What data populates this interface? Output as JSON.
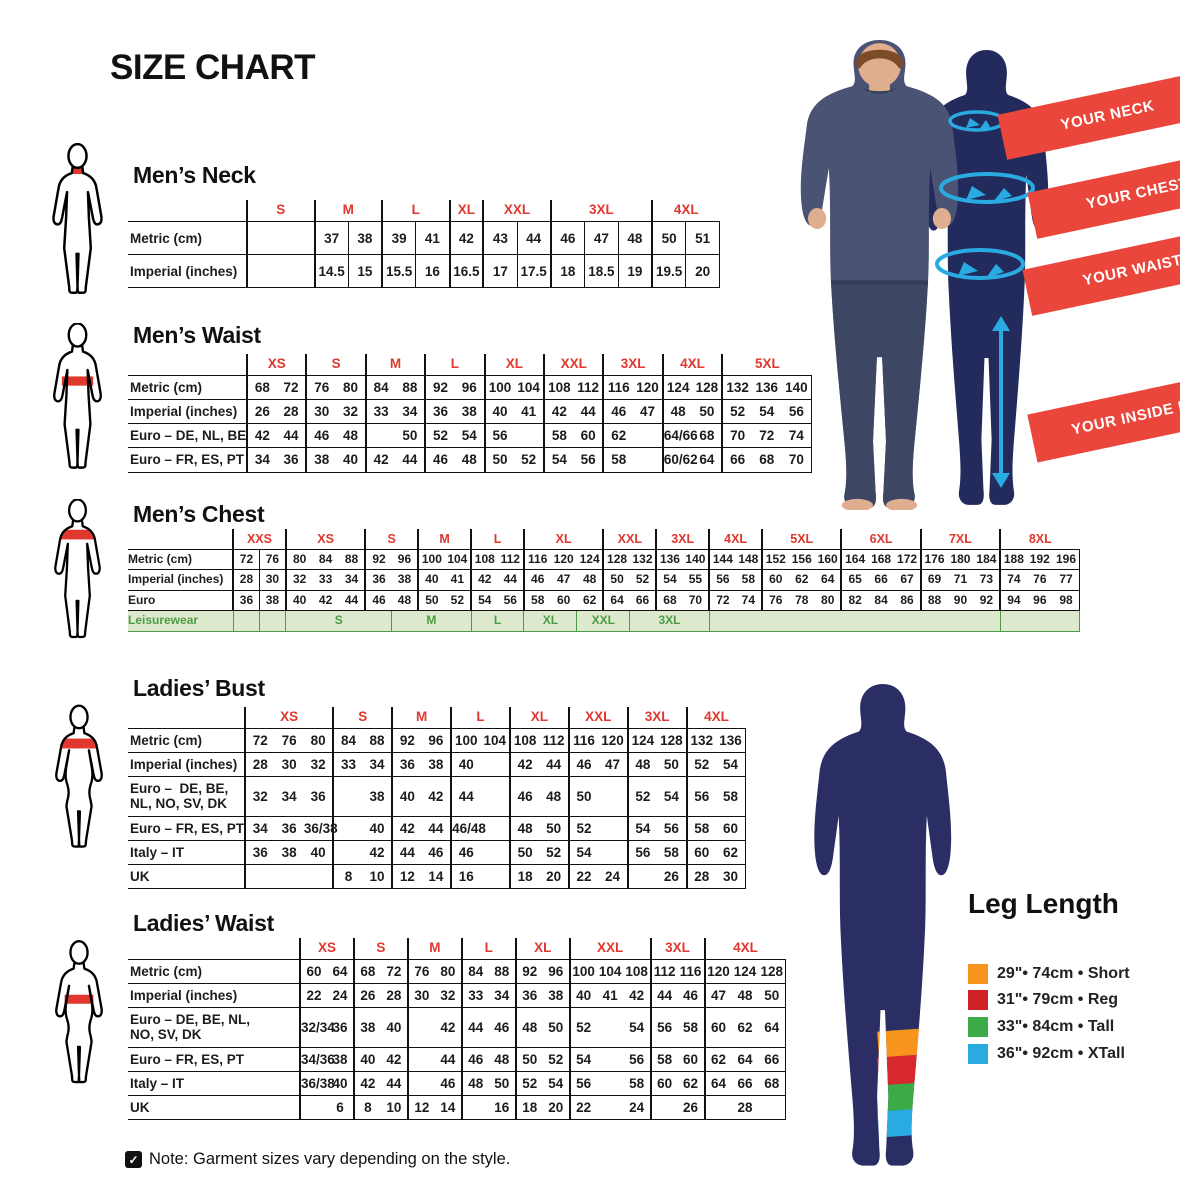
{
  "title": "SIZE CHART",
  "note": {
    "text": "Note: Garment sizes vary depending on the style."
  },
  "banners": {
    "neck": "YOUR NECK",
    "chest": "YOUR CHEST",
    "waist": "YOUR WAIST",
    "inside_leg": "YOUR INSIDE LEG"
  },
  "leg_length": {
    "title": "Leg Length",
    "items": [
      {
        "color": "#F7941E",
        "label": "29\"• 74cm • Short"
      },
      {
        "color": "#CE2127",
        "label": "31\"• 79cm • Reg"
      },
      {
        "color": "#3BAA47",
        "label": "33\"• 84cm • Tall"
      },
      {
        "color": "#29ABE2",
        "label": "36\"• 92cm • XTall"
      }
    ]
  },
  "colors": {
    "header_red": "#E0372E",
    "banner_red": "#EB463B",
    "silhouette_navy": "#232A5C",
    "leisure_green": "#4D9C45",
    "leisure_bg": "#DCE9CD",
    "cyan": "#29ABE2"
  },
  "tables": [
    {
      "id": "mens-neck",
      "title": "Men’s Neck",
      "cell_dividers": true,
      "groups": [
        {
          "label": "S",
          "cols": 2
        },
        {
          "label": "M",
          "cols": 2
        },
        {
          "label": "L",
          "cols": 2
        },
        {
          "label": "XL",
          "cols": 1
        },
        {
          "label": "XXL",
          "cols": 2
        },
        {
          "label": "3XL",
          "cols": 3
        },
        {
          "label": "4XL",
          "cols": 2
        }
      ],
      "rows": [
        {
          "label": "Metric (cm)",
          "cells": [
            [
              "",
              2
            ],
            "37",
            "38",
            "39",
            "41",
            "42",
            "43",
            "44",
            "46",
            "47",
            "48",
            "50",
            "51"
          ]
        },
        {
          "label": "Imperial (inches)",
          "cells": [
            [
              "",
              2
            ],
            "14.5",
            "15",
            "15.5",
            "16",
            "16.5",
            "17",
            "17.5",
            "18",
            "18.5",
            "19",
            "19.5",
            "20"
          ]
        }
      ]
    },
    {
      "id": "mens-waist",
      "title": "Men’s Waist",
      "cell_dividers": false,
      "groups": [
        {
          "label": "XS",
          "cols": 2
        },
        {
          "label": "S",
          "cols": 2
        },
        {
          "label": "M",
          "cols": 2
        },
        {
          "label": "L",
          "cols": 2
        },
        {
          "label": "XL",
          "cols": 2
        },
        {
          "label": "XXL",
          "cols": 2
        },
        {
          "label": "3XL",
          "cols": 2
        },
        {
          "label": "4XL",
          "cols": 2
        },
        {
          "label": "5XL",
          "cols": 3
        }
      ],
      "rows": [
        {
          "label": "Metric (cm)",
          "cells": [
            "68",
            "72",
            "76",
            "80",
            "84",
            "88",
            "92",
            "96",
            "100",
            "104",
            "108",
            "112",
            "116",
            "120",
            "124",
            "128",
            "132",
            "136",
            "140"
          ]
        },
        {
          "label": "Imperial (inches)",
          "cells": [
            "26",
            "28",
            "30",
            "32",
            "33",
            "34",
            "36",
            "38",
            "40",
            "41",
            "42",
            "44",
            "46",
            "47",
            "48",
            "50",
            "52",
            "54",
            "56"
          ]
        },
        {
          "label": "Euro – DE, NL, BE",
          "cells": [
            "42",
            "44",
            "46",
            "48",
            "",
            "50",
            "52",
            "54",
            "56",
            "",
            "58",
            "60",
            "62",
            "",
            "64/66",
            "68",
            "70",
            "72",
            "74"
          ]
        },
        {
          "label": "Euro – FR, ES, PT",
          "cells": [
            "34",
            "36",
            "38",
            "40",
            "42",
            "44",
            "46",
            "48",
            "50",
            "52",
            "54",
            "56",
            "58",
            "",
            "60/62",
            "64",
            "66",
            "68",
            "70"
          ]
        }
      ]
    },
    {
      "id": "mens-chest",
      "title": "Men’s Chest",
      "cell_dividers": false,
      "extra_dividers": [
        1
      ],
      "groups": [
        {
          "label": "XXS",
          "cols": 2
        },
        {
          "label": "XS",
          "cols": 3
        },
        {
          "label": "S",
          "cols": 2
        },
        {
          "label": "M",
          "cols": 2
        },
        {
          "label": "L",
          "cols": 2
        },
        {
          "label": "XL",
          "cols": 3
        },
        {
          "label": "XXL",
          "cols": 2
        },
        {
          "label": "3XL",
          "cols": 2
        },
        {
          "label": "4XL",
          "cols": 2
        },
        {
          "label": "5XL",
          "cols": 3
        },
        {
          "label": "6XL",
          "cols": 3
        },
        {
          "label": "7XL",
          "cols": 3
        },
        {
          "label": "8XL",
          "cols": 3
        }
      ],
      "rows": [
        {
          "label": "Metric (cm)",
          "cells": [
            "72",
            "76",
            "80",
            "84",
            "88",
            "92",
            "96",
            "100",
            "104",
            "108",
            "112",
            "116",
            "120",
            "124",
            "128",
            "132",
            "136",
            "140",
            "144",
            "148",
            "152",
            "156",
            "160",
            "164",
            "168",
            "172",
            "176",
            "180",
            "184",
            "188",
            "192",
            "196"
          ]
        },
        {
          "label": "Imperial (inches)",
          "cells": [
            "28",
            "30",
            "32",
            "33",
            "34",
            "36",
            "38",
            "40",
            "41",
            "42",
            "44",
            "46",
            "47",
            "48",
            "50",
            "52",
            "54",
            "55",
            "56",
            "58",
            "60",
            "62",
            "64",
            "65",
            "66",
            "67",
            "69",
            "71",
            "73",
            "74",
            "76",
            "77"
          ]
        },
        {
          "label": "Euro",
          "cells": [
            "36",
            "38",
            "40",
            "42",
            "44",
            "46",
            "48",
            "50",
            "52",
            "54",
            "56",
            "58",
            "60",
            "62",
            "64",
            "66",
            "68",
            "70",
            "72",
            "74",
            "76",
            "78",
            "80",
            "82",
            "84",
            "86",
            "88",
            "90",
            "92",
            "94",
            "96",
            "98"
          ]
        },
        {
          "label": "Leisurewear",
          "leisure": true,
          "cells": [
            [
              "",
              1
            ],
            [
              "",
              1
            ],
            [
              "S",
              4
            ],
            [
              "M",
              3
            ],
            [
              "L",
              2
            ],
            [
              "XL",
              2
            ],
            [
              "XXL",
              2
            ],
            [
              "3XL",
              3
            ],
            [
              "",
              11
            ],
            [
              "",
              3
            ]
          ]
        }
      ]
    },
    {
      "id": "ladies-bust",
      "title": "Ladies’ Bust",
      "cell_dividers": false,
      "groups": [
        {
          "label": "XS",
          "cols": 3
        },
        {
          "label": "S",
          "cols": 2
        },
        {
          "label": "M",
          "cols": 2
        },
        {
          "label": "L",
          "cols": 2
        },
        {
          "label": "XL",
          "cols": 2
        },
        {
          "label": "XXL",
          "cols": 2
        },
        {
          "label": "3XL",
          "cols": 2
        },
        {
          "label": "4XL",
          "cols": 2
        }
      ],
      "rows": [
        {
          "label": "Metric (cm)",
          "cells": [
            "72",
            "76",
            "80",
            "84",
            "88",
            "92",
            "96",
            "100",
            "104",
            "108",
            "112",
            "116",
            "120",
            "124",
            "128",
            "132",
            "136"
          ]
        },
        {
          "label": "Imperial (inches)",
          "cells": [
            "28",
            "30",
            "32",
            "33",
            "34",
            "36",
            "38",
            "40",
            "",
            "42",
            "44",
            "46",
            "47",
            "48",
            "50",
            "52",
            "54"
          ]
        },
        {
          "label": "Euro –  DE, BE,\nNL, NO, SV, DK",
          "cells": [
            "32",
            "34",
            "36",
            "",
            "38",
            "40",
            "42",
            "44",
            "",
            "46",
            "48",
            "50",
            "",
            "52",
            "54",
            "56",
            "58"
          ]
        },
        {
          "label": "Euro – FR, ES, PT",
          "cells": [
            "34",
            "36",
            "36/38",
            "",
            "40",
            "42",
            "44",
            "46/48",
            "",
            "48",
            "50",
            "52",
            "",
            "54",
            "56",
            "58",
            "60"
          ]
        },
        {
          "label": "Italy – IT",
          "cells": [
            "36",
            "38",
            "40",
            "",
            "42",
            "44",
            "46",
            "46",
            "",
            "50",
            "52",
            "54",
            "",
            "56",
            "58",
            "60",
            "62"
          ]
        },
        {
          "label": "UK",
          "cells": [
            "",
            "",
            "",
            "8",
            "10",
            "12",
            "14",
            "16",
            "",
            "18",
            "20",
            "22",
            "24",
            "",
            "26",
            "28",
            "30"
          ]
        }
      ]
    },
    {
      "id": "ladies-waist",
      "title": "Ladies’ Waist",
      "cell_dividers": false,
      "groups": [
        {
          "label": "XS",
          "cols": 2
        },
        {
          "label": "S",
          "cols": 2
        },
        {
          "label": "M",
          "cols": 2
        },
        {
          "label": "L",
          "cols": 2
        },
        {
          "label": "XL",
          "cols": 2
        },
        {
          "label": "XXL",
          "cols": 3
        },
        {
          "label": "3XL",
          "cols": 2
        },
        {
          "label": "4XL",
          "cols": 3
        }
      ],
      "rows": [
        {
          "label": "Metric (cm)",
          "cells": [
            "60",
            "64",
            "68",
            "72",
            "76",
            "80",
            "84",
            "88",
            "92",
            "96",
            "100",
            "104",
            "108",
            "112",
            "116",
            "120",
            "124",
            "128"
          ]
        },
        {
          "label": "Imperial (inches)",
          "cells": [
            "22",
            "24",
            "26",
            "28",
            "30",
            "32",
            "33",
            "34",
            "36",
            "38",
            "40",
            "41",
            "42",
            "44",
            "46",
            "47",
            "48",
            "50"
          ]
        },
        {
          "label": "Euro – DE, BE, NL,\nNO, SV, DK",
          "cells": [
            "32/34",
            "36",
            "38",
            "40",
            "",
            "42",
            "44",
            "46",
            "48",
            "50",
            "52",
            "",
            "54",
            "56",
            "58",
            "60",
            "62",
            "64"
          ]
        },
        {
          "label": "Euro – FR, ES, PT",
          "cells": [
            "34/36",
            "38",
            "40",
            "42",
            "",
            "44",
            "46",
            "48",
            "50",
            "52",
            "54",
            "",
            "56",
            "58",
            "60",
            "62",
            "64",
            "66"
          ]
        },
        {
          "label": "Italy – IT",
          "cells": [
            "36/38",
            "40",
            "42",
            "44",
            "",
            "46",
            "48",
            "50",
            "52",
            "54",
            "56",
            "",
            "58",
            "60",
            "62",
            "64",
            "66",
            "68"
          ]
        },
        {
          "label": "UK",
          "cells": [
            "",
            "6",
            "8",
            "10",
            "12",
            "14",
            "",
            "16",
            "18",
            "20",
            "22",
            "",
            "24",
            "",
            "26",
            "",
            "28",
            ""
          ]
        }
      ]
    }
  ]
}
